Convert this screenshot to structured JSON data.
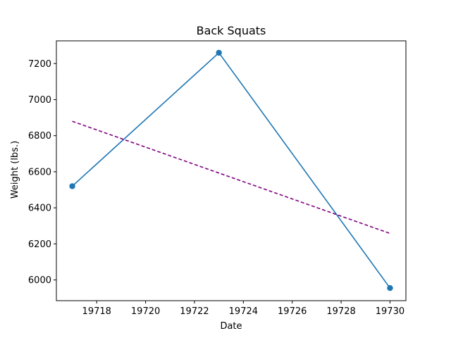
{
  "chart_data": {
    "type": "line",
    "title": "Back Squats",
    "xlabel": "Date",
    "ylabel": "Weight (lbs.)",
    "xlim": [
      19716.35,
      19730.65
    ],
    "ylim": [
      5885,
      7326
    ],
    "x_ticks": [
      19718,
      19720,
      19722,
      19724,
      19726,
      19728,
      19730
    ],
    "y_ticks": [
      6000,
      6200,
      6400,
      6600,
      6800,
      7000,
      7200
    ],
    "grid": false,
    "series": [
      {
        "x": [
          19717,
          19723,
          19730
        ],
        "y": [
          6520,
          7260,
          5955
        ],
        "color": "#1f77b4",
        "style": "solid",
        "marker": "circle"
      },
      {
        "x": [
          19717,
          19730
        ],
        "y": [
          6880,
          6258
        ],
        "color": "#800080",
        "style": "dashed",
        "marker": "none"
      }
    ]
  }
}
